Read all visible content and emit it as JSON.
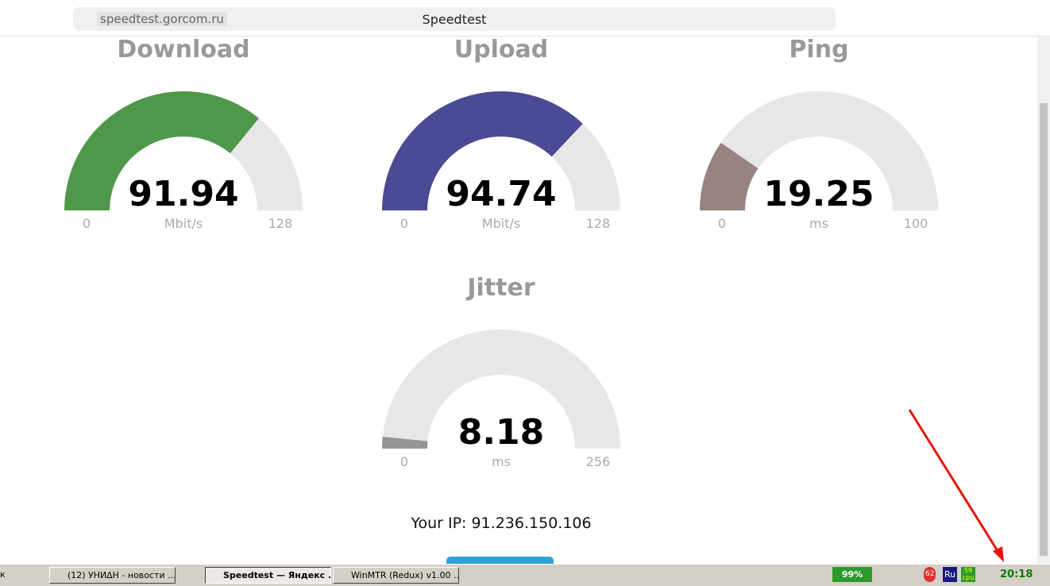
{
  "browser": {
    "url": "speedtest.gorcom.ru",
    "tab_title": "Speedtest"
  },
  "gauges": [
    {
      "title": "Download",
      "value": 91.94,
      "unit": "Mbit/s",
      "min": 0,
      "max": 128,
      "color": "#4f984a"
    },
    {
      "title": "Upload",
      "value": 94.74,
      "unit": "Mbit/s",
      "min": 0,
      "max": 128,
      "color": "#4b4a95"
    },
    {
      "title": "Ping",
      "value": 19.25,
      "unit": "ms",
      "min": 0,
      "max": 100,
      "color": "#978481"
    },
    {
      "title": "Jitter",
      "value": 8.18,
      "unit": "ms",
      "min": 0,
      "max": 256,
      "color": "#959393"
    }
  ],
  "ip": "Your IP: 91.236.150.106",
  "taskbar": {
    "edge": "к",
    "items": [
      "(12) УНИ∆Н - новости ...",
      "Speedtest — Яндекс ...",
      "WinMTR (Redux) v1.00 ..."
    ],
    "battery": "99%",
    "badge": "62",
    "language": "Ru",
    "cpu_value": "59",
    "cpu_label": "cpu",
    "clock": "20:18"
  }
}
